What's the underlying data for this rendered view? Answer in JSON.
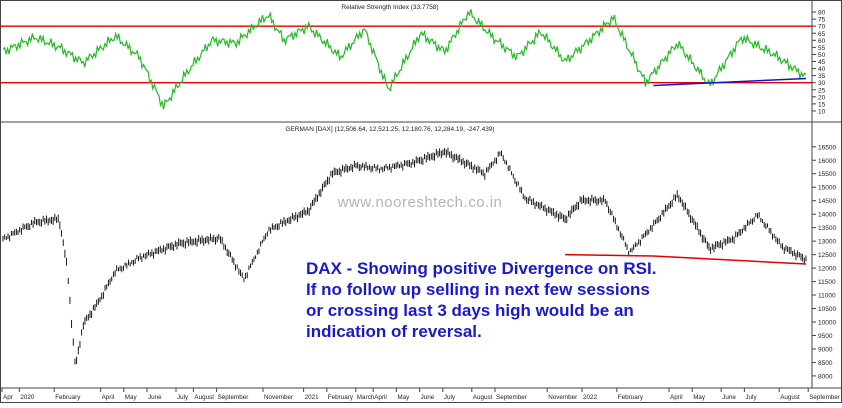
{
  "chart_data": [
    {
      "type": "line",
      "title": "Relative Strength Index (33.7758)",
      "yaxis_ticks": [
        10,
        15,
        20,
        25,
        30,
        35,
        40,
        45,
        50,
        55,
        60,
        65,
        70,
        75,
        80
      ],
      "ylim": [
        5,
        85
      ],
      "reference_lines": [
        70,
        30
      ],
      "colors": {
        "line": "#22bb22",
        "reference": "#e00000",
        "trendline": "#1515cc"
      },
      "x": [
        0,
        4,
        7,
        10,
        14,
        17,
        20,
        23,
        26,
        29,
        33,
        35,
        38,
        42,
        45,
        48,
        52,
        55,
        58,
        61,
        64,
        67,
        70,
        73,
        76,
        80,
        84,
        88,
        92,
        96,
        100
      ],
      "values": [
        52,
        62,
        55,
        44,
        63,
        48,
        13,
        38,
        60,
        58,
        78,
        60,
        70,
        48,
        68,
        25,
        65,
        52,
        80,
        62,
        48,
        66,
        45,
        60,
        76,
        30,
        58,
        28,
        62,
        50,
        34
      ],
      "trendline": {
        "x": [
          81,
          100
        ],
        "values": [
          28,
          33
        ]
      }
    },
    {
      "type": "line",
      "title": "GERMAN [DAX] (12,506.64, 12,521.25, 12,180.76, 12,284.19, -247.439)",
      "yaxis_ticks": [
        8000,
        8500,
        9000,
        9500,
        10000,
        10500,
        11000,
        11500,
        12000,
        12500,
        13000,
        13500,
        14000,
        14500,
        15000,
        15500,
        16000,
        16500
      ],
      "ylim": [
        7700,
        16900
      ],
      "colors": {
        "price": "#000000",
        "support": "#e00000"
      },
      "x": [
        0,
        4,
        7,
        8,
        9,
        10,
        12,
        14,
        17,
        22,
        27,
        30,
        33,
        35,
        38,
        41,
        44,
        47,
        51,
        55,
        60,
        62,
        65,
        70,
        72,
        75,
        78,
        81,
        84,
        88,
        91,
        94,
        97,
        100
      ],
      "values": [
        13100,
        13700,
        13800,
        12000,
        8300,
        9900,
        10800,
        11900,
        12400,
        12900,
        13100,
        11600,
        13400,
        13700,
        14100,
        15500,
        15800,
        15700,
        15900,
        16300,
        15500,
        16300,
        14600,
        13800,
        14500,
        14500,
        12600,
        13600,
        14700,
        12700,
        13100,
        14000,
        12800,
        12300
      ],
      "support_line": {
        "x": [
          70,
          81,
          100
        ],
        "values": [
          12500,
          12450,
          12150
        ]
      }
    }
  ],
  "x_axis": {
    "labels": [
      "Apr",
      "2020",
      "February",
      "April",
      "May",
      "June",
      "July",
      "August",
      "September",
      "November",
      "2021",
      "February",
      "March",
      "April",
      "May",
      "June",
      "July",
      "August",
      "September",
      "November",
      "2022",
      "February",
      "April",
      "May",
      "June",
      "July",
      "August",
      "September"
    ],
    "positions": [
      0,
      3,
      9,
      17,
      21,
      25,
      30,
      33,
      37,
      45,
      52,
      56,
      61,
      64,
      68,
      72,
      76,
      81,
      85,
      94,
      100,
      106,
      115,
      119,
      124,
      128,
      134,
      139
    ]
  },
  "watermark": "www.nooreshtech.co.in",
  "annotation": [
    "DAX - Showing positive Divergence on RSI.",
    "If no follow up selling in next few sessions",
    "or crossing last 3 days high would be an",
    "indication of reversal."
  ]
}
